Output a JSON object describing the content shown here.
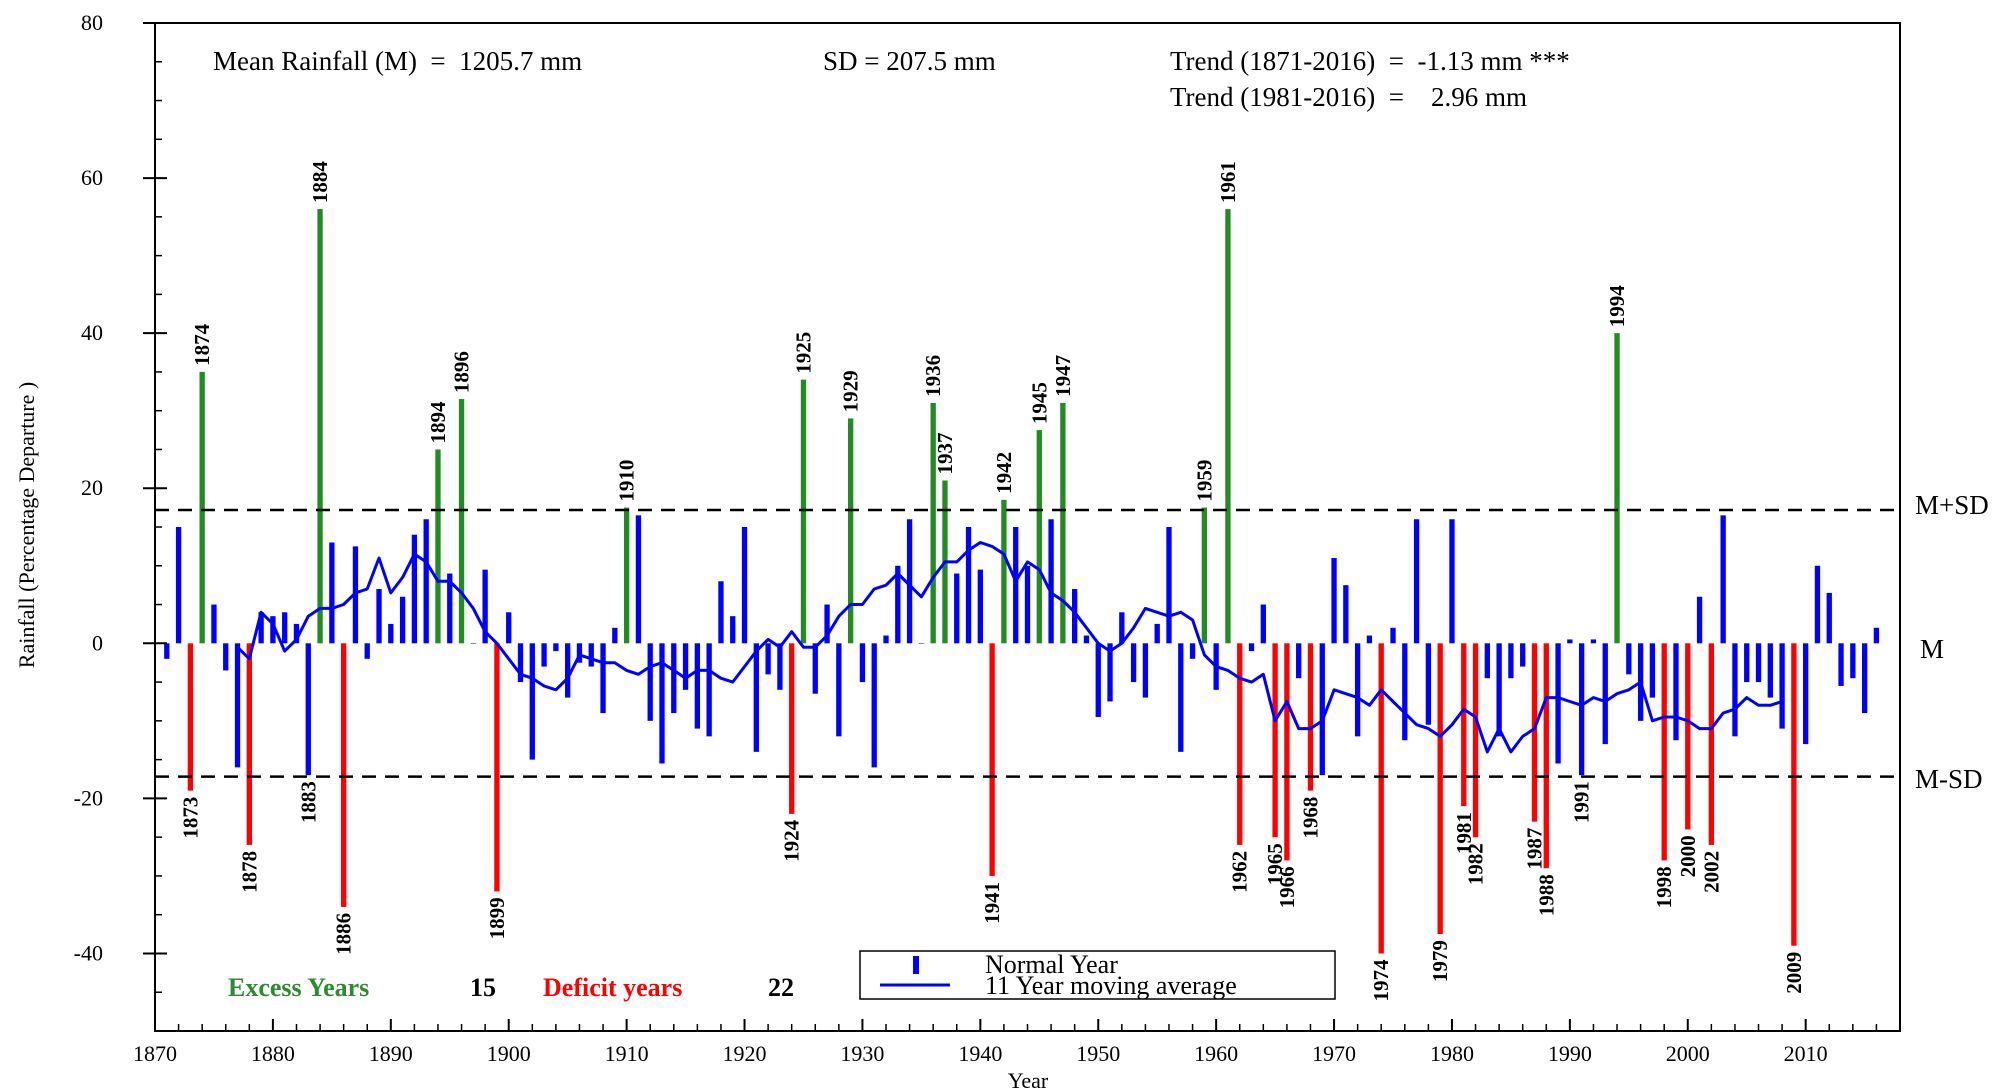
{
  "chart_data": {
    "type": "bar",
    "xlabel": "Year",
    "ylabel": "Rainfall (Percentage Departure )",
    "xlim": [
      1870,
      2018
    ],
    "ylim": [
      -50,
      80
    ],
    "x_ticks": [
      1870,
      1880,
      1890,
      1900,
      1910,
      1920,
      1930,
      1940,
      1950,
      1960,
      1970,
      1980,
      1990,
      2000,
      2010
    ],
    "y_ticks": [
      -40,
      -20,
      0,
      20,
      40,
      60,
      80
    ],
    "x": [
      1871,
      1872,
      1873,
      1874,
      1875,
      1876,
      1877,
      1878,
      1879,
      1880,
      1881,
      1882,
      1883,
      1884,
      1885,
      1886,
      1887,
      1888,
      1889,
      1890,
      1891,
      1892,
      1893,
      1894,
      1895,
      1896,
      1897,
      1898,
      1899,
      1900,
      1901,
      1902,
      1903,
      1904,
      1905,
      1906,
      1907,
      1908,
      1909,
      1910,
      1911,
      1912,
      1913,
      1914,
      1915,
      1916,
      1917,
      1918,
      1919,
      1920,
      1921,
      1922,
      1923,
      1924,
      1925,
      1926,
      1927,
      1928,
      1929,
      1930,
      1931,
      1932,
      1933,
      1934,
      1935,
      1936,
      1937,
      1938,
      1939,
      1940,
      1941,
      1942,
      1943,
      1944,
      1945,
      1946,
      1947,
      1948,
      1949,
      1950,
      1951,
      1952,
      1953,
      1954,
      1955,
      1956,
      1957,
      1958,
      1959,
      1960,
      1961,
      1962,
      1963,
      1964,
      1965,
      1966,
      1967,
      1968,
      1969,
      1970,
      1971,
      1972,
      1973,
      1974,
      1975,
      1976,
      1977,
      1978,
      1979,
      1980,
      1981,
      1982,
      1983,
      1984,
      1985,
      1986,
      1987,
      1988,
      1989,
      1990,
      1991,
      1992,
      1993,
      1994,
      1995,
      1996,
      1997,
      1998,
      1999,
      2000,
      2001,
      2002,
      2003,
      2004,
      2005,
      2006,
      2007,
      2008,
      2009,
      2010,
      2011,
      2012,
      2013,
      2014,
      2015,
      2016
    ],
    "values": [
      -2,
      15,
      -19,
      35,
      5,
      -3.5,
      -16,
      -26,
      4,
      3.5,
      4,
      2.5,
      -17,
      56,
      13,
      -34,
      12.5,
      -2,
      7,
      2.5,
      6,
      14,
      16,
      25,
      9,
      31.5,
      0,
      9.5,
      -32,
      4,
      -5,
      -15,
      -3,
      -1,
      -7,
      -2.5,
      -3,
      -9,
      2,
      17.5,
      16.5,
      -10,
      -15.5,
      -9,
      -6,
      -11,
      -12,
      8,
      3.5,
      15,
      -14,
      -4,
      -6,
      -22,
      34,
      -6.5,
      5,
      -12,
      29,
      -5,
      -16,
      1,
      10,
      16,
      0,
      31,
      21,
      9,
      15,
      9.5,
      -30,
      18.5,
      15,
      10,
      27.5,
      16,
      31,
      7,
      1,
      -9.5,
      -7.5,
      4,
      -5,
      -7,
      2.5,
      15,
      -14,
      -2,
      17.5,
      -6,
      56,
      -26,
      -1,
      5,
      -25,
      -28,
      -4.5,
      -19,
      -17,
      11,
      7.5,
      -12,
      1,
      -40,
      2,
      -12.5,
      16,
      -10.5,
      -37.5,
      16,
      -21,
      -25,
      -4.5,
      -12,
      -4.5,
      -3,
      -23,
      -29,
      -15.5,
      0.5,
      -17,
      0.5,
      -13,
      40,
      -4,
      -10,
      -7,
      -28,
      -12.5,
      -24,
      6,
      -26,
      16.5,
      -12,
      -5,
      -5,
      -7,
      -11,
      -39,
      -13,
      10,
      6.5,
      -5.5,
      -4.5,
      -9,
      2
    ],
    "moving_average": [
      [
        1877,
        -0.5
      ],
      [
        1878,
        -2
      ],
      [
        1879,
        4
      ],
      [
        1880,
        2.5
      ],
      [
        1881,
        -1
      ],
      [
        1882,
        0.5
      ],
      [
        1883,
        3.5
      ],
      [
        1884,
        4.5
      ],
      [
        1885,
        4.5
      ],
      [
        1886,
        5
      ],
      [
        1887,
        6.5
      ],
      [
        1888,
        7
      ],
      [
        1889,
        11
      ],
      [
        1890,
        6.5
      ],
      [
        1891,
        8.5
      ],
      [
        1892,
        11.5
      ],
      [
        1893,
        10.5
      ],
      [
        1894,
        8
      ],
      [
        1895,
        8
      ],
      [
        1896,
        6.5
      ],
      [
        1897,
        4.5
      ],
      [
        1898,
        1.5
      ],
      [
        1899,
        0
      ],
      [
        1900,
        -2
      ],
      [
        1901,
        -4
      ],
      [
        1902,
        -4.5
      ],
      [
        1903,
        -5.5
      ],
      [
        1904,
        -6
      ],
      [
        1905,
        -4.5
      ],
      [
        1906,
        -1.5
      ],
      [
        1907,
        -2
      ],
      [
        1908,
        -2.5
      ],
      [
        1909,
        -2.5
      ],
      [
        1910,
        -3.5
      ],
      [
        1911,
        -4
      ],
      [
        1912,
        -3
      ],
      [
        1913,
        -2.5
      ],
      [
        1914,
        -3.5
      ],
      [
        1915,
        -4.5
      ],
      [
        1916,
        -3.5
      ],
      [
        1917,
        -3.5
      ],
      [
        1918,
        -4.5
      ],
      [
        1919,
        -5
      ],
      [
        1920,
        -3
      ],
      [
        1921,
        -1
      ],
      [
        1922,
        0.5
      ],
      [
        1923,
        -0.5
      ],
      [
        1924,
        1.5
      ],
      [
        1925,
        -0.5
      ],
      [
        1926,
        -0.5
      ],
      [
        1927,
        1
      ],
      [
        1928,
        3.5
      ],
      [
        1929,
        5
      ],
      [
        1930,
        5
      ],
      [
        1931,
        7
      ],
      [
        1932,
        7.5
      ],
      [
        1933,
        9
      ],
      [
        1934,
        7.5
      ],
      [
        1935,
        6
      ],
      [
        1936,
        8.5
      ],
      [
        1937,
        10.5
      ],
      [
        1938,
        10.5
      ],
      [
        1939,
        12
      ],
      [
        1940,
        13
      ],
      [
        1941,
        12.5
      ],
      [
        1942,
        11.5
      ],
      [
        1943,
        8
      ],
      [
        1944,
        10.5
      ],
      [
        1945,
        9.5
      ],
      [
        1946,
        6.5
      ],
      [
        1947,
        5.5
      ],
      [
        1948,
        4
      ],
      [
        1949,
        2
      ],
      [
        1950,
        0
      ],
      [
        1951,
        -1
      ],
      [
        1952,
        0
      ],
      [
        1953,
        2
      ],
      [
        1954,
        4.5
      ],
      [
        1955,
        4
      ],
      [
        1956,
        3.5
      ],
      [
        1957,
        4
      ],
      [
        1958,
        3
      ],
      [
        1959,
        -1.5
      ],
      [
        1960,
        -3
      ],
      [
        1961,
        -3.5
      ],
      [
        1962,
        -4.5
      ],
      [
        1963,
        -5
      ],
      [
        1964,
        -4
      ],
      [
        1965,
        -10
      ],
      [
        1966,
        -7.5
      ],
      [
        1967,
        -11
      ],
      [
        1968,
        -11
      ],
      [
        1969,
        -10
      ],
      [
        1970,
        -6
      ],
      [
        1971,
        -6.5
      ],
      [
        1972,
        -7
      ],
      [
        1973,
        -8
      ],
      [
        1974,
        -6
      ],
      [
        1975,
        -7.5
      ],
      [
        1976,
        -9
      ],
      [
        1977,
        -10.5
      ],
      [
        1978,
        -11
      ],
      [
        1979,
        -12
      ],
      [
        1980,
        -10.5
      ],
      [
        1981,
        -8.5
      ],
      [
        1982,
        -9.5
      ],
      [
        1983,
        -14
      ],
      [
        1984,
        -11
      ],
      [
        1985,
        -14
      ],
      [
        1986,
        -12
      ],
      [
        1987,
        -11
      ],
      [
        1988,
        -7
      ],
      [
        1989,
        -7
      ],
      [
        1990,
        -7.5
      ],
      [
        1991,
        -8
      ],
      [
        1992,
        -7
      ],
      [
        1993,
        -7.5
      ],
      [
        1994,
        -6.5
      ],
      [
        1995,
        -6
      ],
      [
        1996,
        -5
      ],
      [
        1997,
        -10
      ],
      [
        1998,
        -9.5
      ],
      [
        1999,
        -9.5
      ],
      [
        2000,
        -10
      ],
      [
        2001,
        -11
      ],
      [
        2002,
        -11
      ],
      [
        2003,
        -9
      ],
      [
        2004,
        -8.5
      ],
      [
        2005,
        -7
      ],
      [
        2006,
        -8
      ],
      [
        2007,
        -8
      ],
      [
        2008,
        -7.5
      ]
    ],
    "mean_line": 0,
    "sd_lines": [
      17.2,
      -17.2
    ],
    "excess_threshold": 17.2,
    "deficit_threshold": -17.2,
    "grid": false,
    "legend_position": "bottom-center",
    "colors": {
      "excess": "#228b22",
      "deficit": "#ff0000",
      "normal": "#0000ff",
      "moving_average": "#0000ff",
      "excess_text": "#2e8b2e",
      "deficit_text": "#ff0000"
    },
    "labeled_years": {
      "excess": [
        1874,
        1884,
        1894,
        1896,
        1910,
        1925,
        1929,
        1936,
        1937,
        1942,
        1945,
        1947,
        1959,
        1961,
        1994
      ],
      "deficit": [
        1873,
        1878,
        1883,
        1886,
        1899,
        1924,
        1941,
        1962,
        1965,
        1966,
        1968,
        1974,
        1979,
        1981,
        1982,
        1987,
        1988,
        1991,
        1998,
        2000,
        2002,
        2009
      ]
    }
  },
  "annotations": {
    "mean": "Mean Rainfall (M)  =  1205.7 mm",
    "sd": "SD = 207.5 mm",
    "trend1": "Trend (1871-2016)  =  -1.13 mm ***",
    "trend2": "Trend (1981-2016)  =    2.96 mm"
  },
  "reference_labels": {
    "plus_sd": "M+SD",
    "mean": "M",
    "minus_sd": "M-SD"
  },
  "legend": {
    "normal": "Normal Year",
    "moving_average": "11 Year moving average",
    "excess_label": "Excess Years",
    "excess_count": "15",
    "deficit_label": "Deficit years",
    "deficit_count": "22"
  }
}
